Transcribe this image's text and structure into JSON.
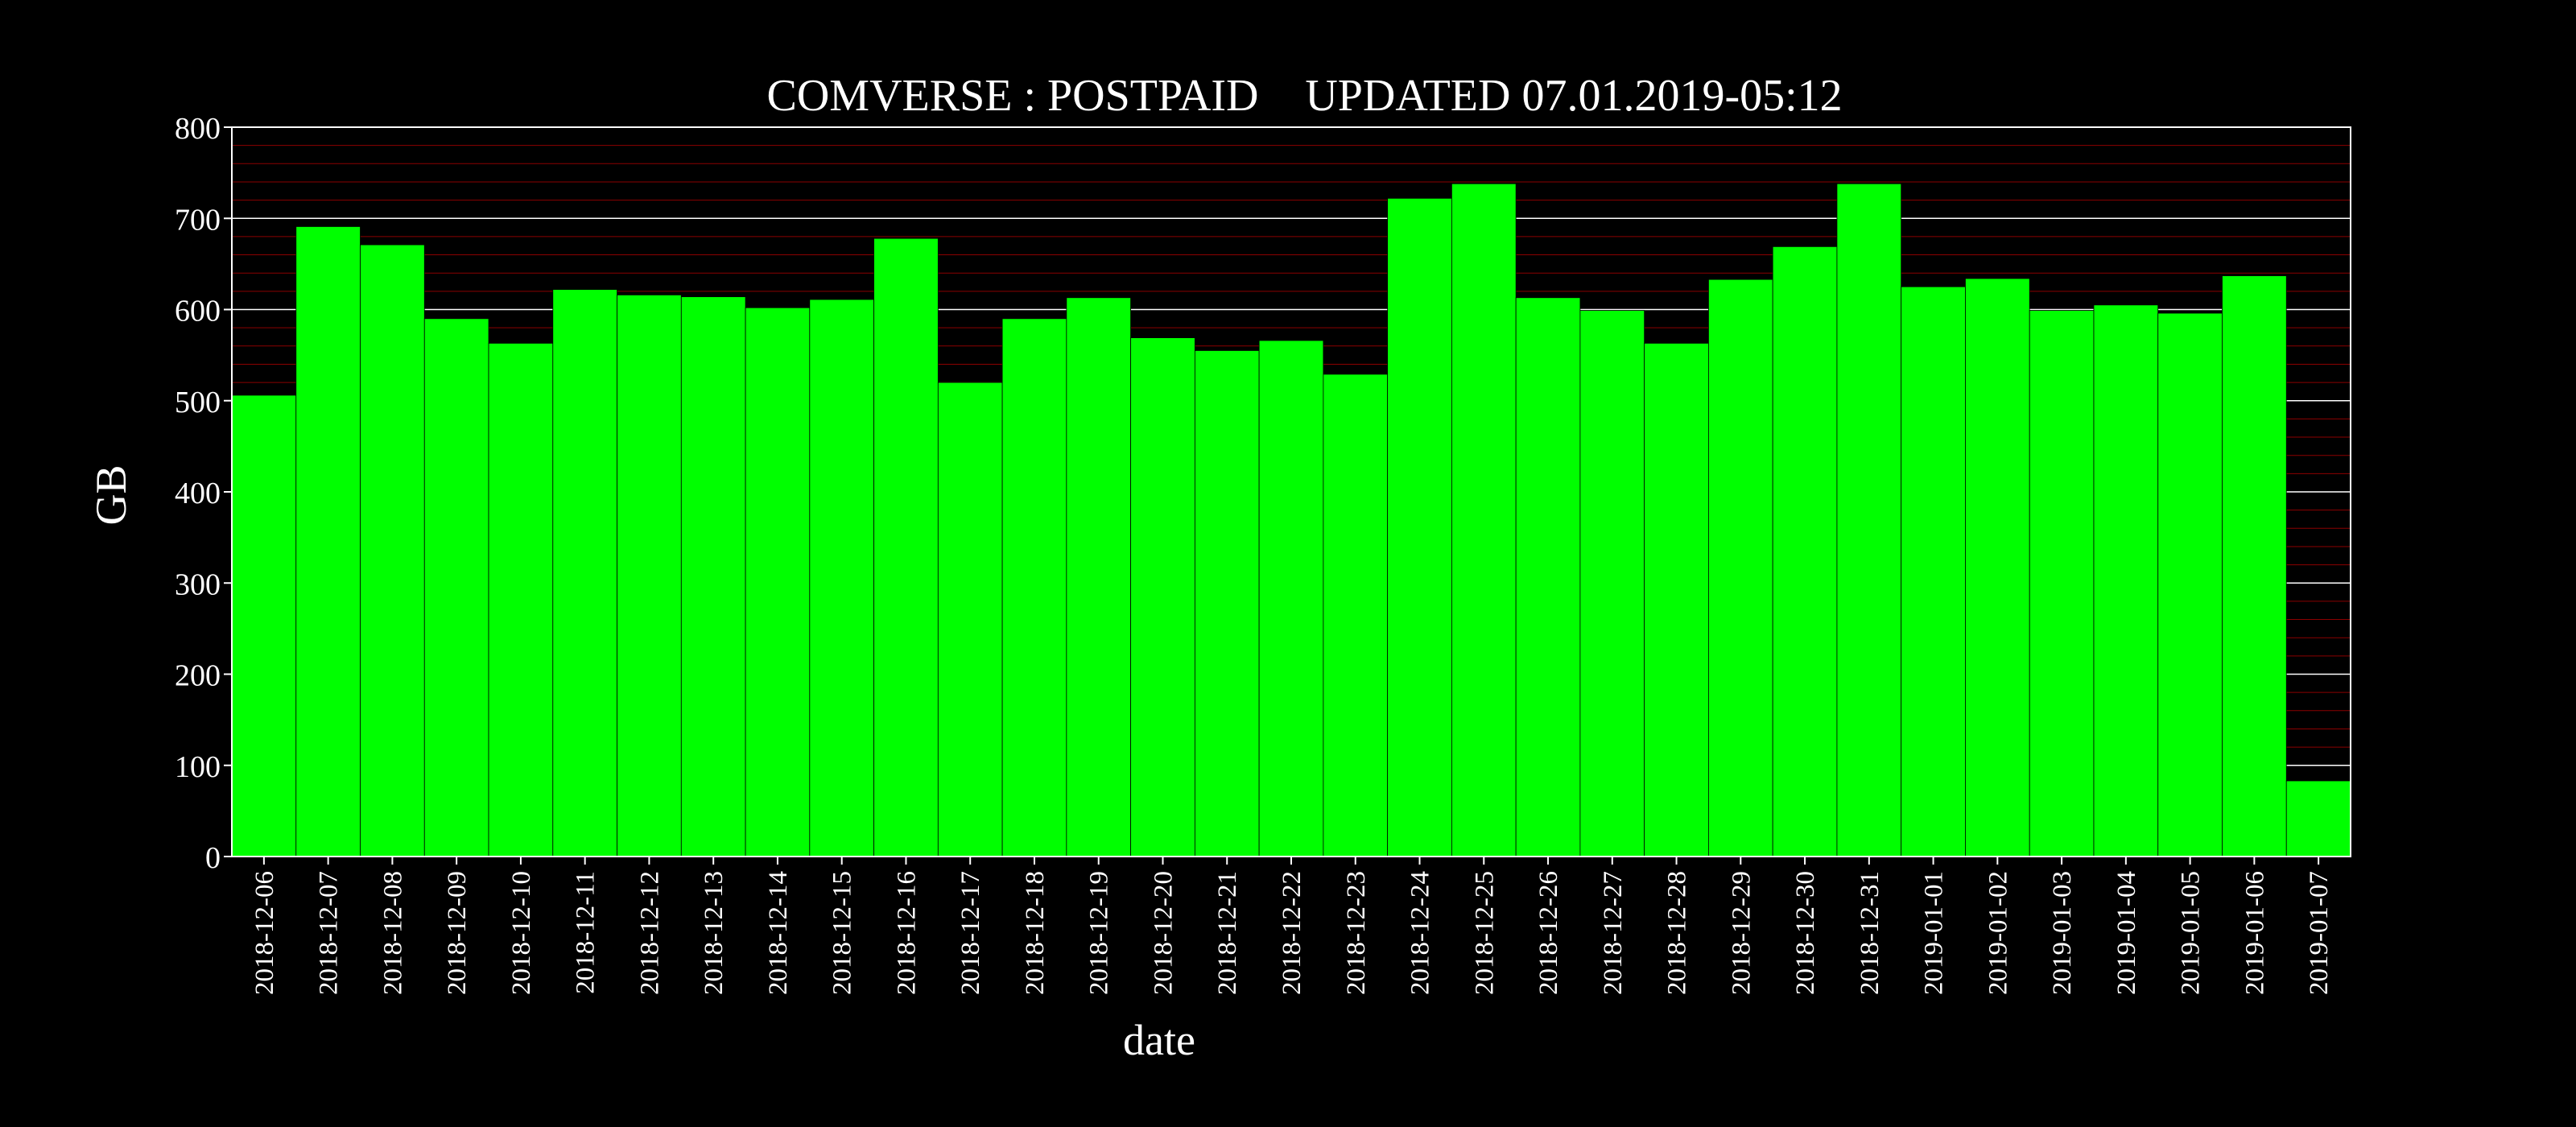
{
  "chart_data": {
    "type": "bar",
    "title": "COMVERSE : POSTPAID",
    "subtitle": "UPDATED 07.01.2019-05:12",
    "xlabel": "date",
    "ylabel": "GB",
    "ylim": [
      0,
      800
    ],
    "yticks": [
      0,
      100,
      200,
      300,
      400,
      500,
      600,
      700,
      800
    ],
    "grid": true,
    "categories": [
      "2018-12-06",
      "2018-12-07",
      "2018-12-08",
      "2018-12-09",
      "2018-12-10",
      "2018-12-11",
      "2018-12-12",
      "2018-12-13",
      "2018-12-14",
      "2018-12-15",
      "2018-12-16",
      "2018-12-17",
      "2018-12-18",
      "2018-12-19",
      "2018-12-20",
      "2018-12-21",
      "2018-12-22",
      "2018-12-23",
      "2018-12-24",
      "2018-12-25",
      "2018-12-26",
      "2018-12-27",
      "2018-12-28",
      "2018-12-29",
      "2018-12-30",
      "2018-12-31",
      "2019-01-01",
      "2019-01-02",
      "2019-01-03",
      "2019-01-04",
      "2019-01-05",
      "2019-01-06",
      "2019-01-07"
    ],
    "values": [
      506,
      691,
      671,
      590,
      563,
      622,
      616,
      614,
      602,
      611,
      678,
      520,
      590,
      613,
      569,
      555,
      566,
      529,
      722,
      738,
      613,
      599,
      563,
      633,
      669,
      738,
      625,
      634,
      599,
      605,
      596,
      637,
      83
    ],
    "colors": {
      "background": "#000000",
      "bar": "#00ff00",
      "bar_edge": "#000000",
      "text": "#ffffff",
      "major_grid": "#ffffff",
      "minor_grid": "#8b0000"
    }
  }
}
